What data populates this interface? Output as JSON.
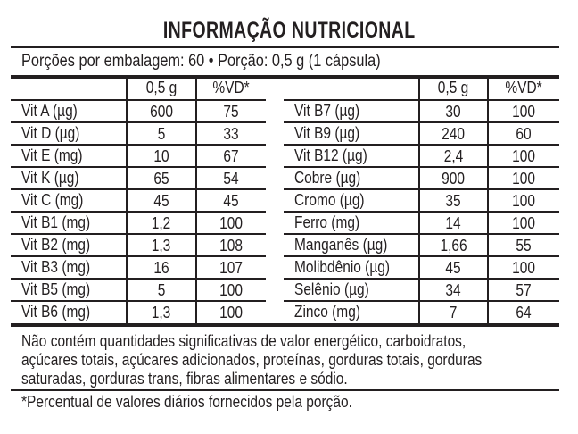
{
  "title": "INFORMAÇÃO NUTRICIONAL",
  "servings_line": "Porções por embalagem: 60 • Porção: 0,5 g (1 cápsula)",
  "columns": {
    "amount": "0,5 g",
    "dv": "%VD*"
  },
  "left_table": [
    {
      "name": "Vit A (µg)",
      "amount": "600",
      "dv": "75"
    },
    {
      "name": "Vit D (µg)",
      "amount": "5",
      "dv": "33"
    },
    {
      "name": "Vit E (mg)",
      "amount": "10",
      "dv": "67"
    },
    {
      "name": "Vit K (µg)",
      "amount": "65",
      "dv": "54"
    },
    {
      "name": "Vit C (mg)",
      "amount": "45",
      "dv": "45"
    },
    {
      "name": "Vit B1 (mg)",
      "amount": "1,2",
      "dv": "100"
    },
    {
      "name": "Vit B2 (mg)",
      "amount": "1,3",
      "dv": "108"
    },
    {
      "name": "Vit B3 (mg)",
      "amount": "16",
      "dv": "107"
    },
    {
      "name": "Vit B5 (mg)",
      "amount": "5",
      "dv": "100"
    },
    {
      "name": "Vit B6 (mg)",
      "amount": "1,3",
      "dv": "100"
    }
  ],
  "right_table": [
    {
      "name": "Vit B7 (µg)",
      "amount": "30",
      "dv": "100"
    },
    {
      "name": "Vit B9 (µg)",
      "amount": "240",
      "dv": "60"
    },
    {
      "name": "Vit B12 (µg)",
      "amount": "2,4",
      "dv": "100"
    },
    {
      "name": "Cobre (µg)",
      "amount": "900",
      "dv": "100"
    },
    {
      "name": "Cromo (µg)",
      "amount": "35",
      "dv": "100"
    },
    {
      "name": "Ferro (mg)",
      "amount": "14",
      "dv": "100"
    },
    {
      "name": "Manganês (µg)",
      "amount": "1,66",
      "dv": "55"
    },
    {
      "name": "Molibdênio (µg)",
      "amount": "45",
      "dv": "100"
    },
    {
      "name": "Selênio (µg)",
      "amount": "34",
      "dv": "57"
    },
    {
      "name": "Zinco (mg)",
      "amount": "7",
      "dv": "64"
    }
  ],
  "note_lines": [
    "Não contém quantidades significativas de valor energético, carboidratos,",
    "açúcares totais, açúcares adicionados, proteínas, gorduras totais, gorduras",
    "saturadas, gorduras trans, fibras alimentares e sódio."
  ],
  "footnote": "*Percentual de valores diários fornecidos pela porção."
}
